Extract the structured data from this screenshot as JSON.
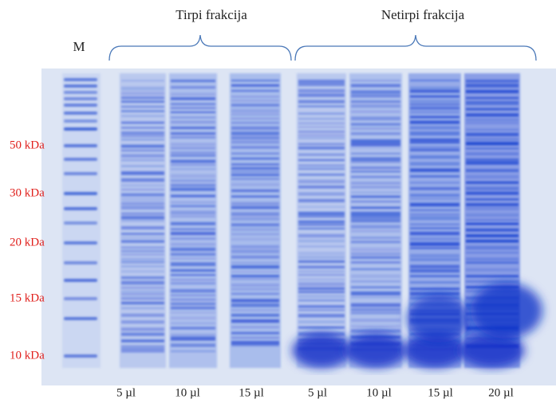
{
  "header": {
    "groups": [
      "Tirpi frakcija",
      "Netirpi frakcija"
    ],
    "marker": "M"
  },
  "markers": [
    "50 kDa",
    "30 kDa",
    "20 kDa",
    "15 kDa",
    "10 kDa"
  ],
  "lanes": [
    "5 µl",
    "10 µl",
    "15 µl",
    "5 µl",
    "10 µl",
    "15 µl",
    "20 µl"
  ]
}
